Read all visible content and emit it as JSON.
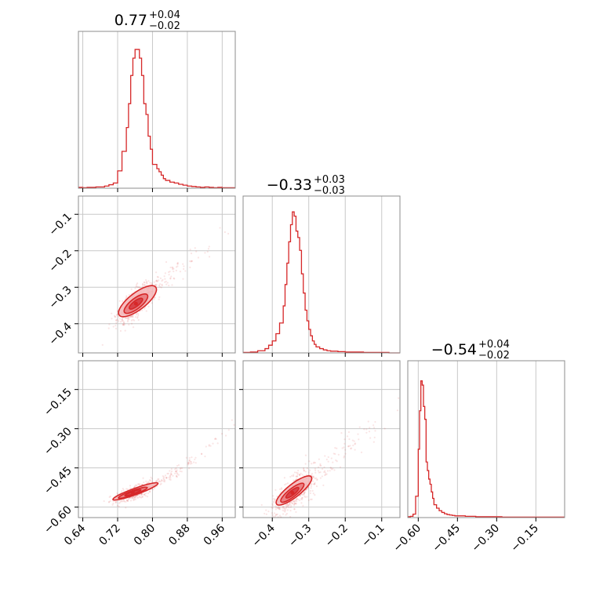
{
  "colors": {
    "series": "#d62728",
    "fill_light": "#f4b6b8",
    "fill_mid": "#e8777a",
    "fill_dark": "#d33a3f",
    "grid": "#c8c8c8",
    "frame": "#8c8c8c"
  },
  "chart_data": {
    "type": "corner",
    "grid": true,
    "parameters": [
      {
        "title_main": "0.77",
        "title_sup": "+0.04",
        "title_sub": "−0.02",
        "range": [
          0.63,
          0.99
        ],
        "ticks": [
          0.64,
          0.72,
          0.8,
          0.88,
          0.96
        ],
        "tick_labels": [
          "0.64",
          "0.72",
          "0.80",
          "0.88",
          "0.96"
        ],
        "histogram": {
          "bin_edges": [
            0.63,
            0.64,
            0.65,
            0.66,
            0.67,
            0.68,
            0.69,
            0.7,
            0.71,
            0.72,
            0.73,
            0.74,
            0.745,
            0.75,
            0.755,
            0.76,
            0.765,
            0.77,
            0.775,
            0.78,
            0.785,
            0.79,
            0.795,
            0.8,
            0.81,
            0.815,
            0.82,
            0.825,
            0.83,
            0.84,
            0.85,
            0.86,
            0.87,
            0.88,
            0.89,
            0.9,
            0.91,
            0.92,
            0.93,
            0.94,
            0.95,
            0.96,
            0.97,
            0.98,
            0.99
          ],
          "counts": [
            2,
            1,
            2,
            2,
            3,
            3,
            5,
            8,
            12,
            40,
            85,
            140,
            195,
            260,
            300,
            320,
            320,
            300,
            260,
            195,
            170,
            120,
            90,
            55,
            45,
            38,
            30,
            22,
            18,
            14,
            12,
            9,
            7,
            5,
            4,
            3,
            2,
            3,
            2,
            1,
            2,
            1,
            1,
            1
          ],
          "ymax": 340
        }
      },
      {
        "title_main": "−0.33",
        "title_sup": "+0.03",
        "title_sub": "−0.03",
        "range": [
          -0.48,
          -0.05
        ],
        "ticks": [
          -0.4,
          -0.3,
          -0.2,
          -0.1
        ],
        "tick_labels": [
          "−0.4",
          "−0.3",
          "−0.2",
          "−0.1"
        ],
        "histogram": {
          "bin_edges": [
            -0.48,
            -0.46,
            -0.44,
            -0.42,
            -0.41,
            -0.4,
            -0.39,
            -0.38,
            -0.37,
            -0.365,
            -0.36,
            -0.355,
            -0.35,
            -0.345,
            -0.34,
            -0.335,
            -0.33,
            -0.325,
            -0.32,
            -0.315,
            -0.31,
            -0.305,
            -0.3,
            -0.295,
            -0.29,
            -0.285,
            -0.28,
            -0.27,
            -0.26,
            -0.25,
            -0.24,
            -0.22,
            -0.2,
            -0.18,
            -0.15,
            -0.12,
            -0.08,
            -0.05
          ],
          "counts": [
            1,
            2,
            5,
            10,
            18,
            28,
            45,
            70,
            110,
            160,
            210,
            260,
            300,
            330,
            320,
            285,
            270,
            240,
            185,
            140,
            100,
            75,
            55,
            40,
            28,
            20,
            14,
            10,
            7,
            5,
            4,
            3,
            2,
            2,
            1,
            1,
            0
          ],
          "ymax": 345
        }
      },
      {
        "title_main": "−0.54",
        "title_sup": "+0.04",
        "title_sub": "−0.02",
        "range": [
          -0.64,
          -0.04
        ],
        "ticks": [
          -0.6,
          -0.45,
          -0.3,
          -0.15
        ],
        "tick_labels": [
          "−0.60",
          "−0.45",
          "−0.30",
          "−0.15"
        ],
        "histogram": {
          "bin_edges": [
            -0.64,
            -0.63,
            -0.62,
            -0.61,
            -0.6,
            -0.595,
            -0.59,
            -0.585,
            -0.58,
            -0.575,
            -0.57,
            -0.565,
            -0.56,
            -0.555,
            -0.55,
            -0.545,
            -0.54,
            -0.53,
            -0.52,
            -0.51,
            -0.5,
            -0.49,
            -0.48,
            -0.47,
            -0.46,
            -0.44,
            -0.42,
            -0.4,
            -0.38,
            -0.35,
            -0.32,
            -0.28,
            -0.24,
            -0.18,
            -0.12,
            -0.06,
            -0.04
          ],
          "counts": [
            2,
            3,
            8,
            50,
            160,
            250,
            320,
            310,
            260,
            230,
            130,
            110,
            90,
            78,
            60,
            45,
            30,
            22,
            16,
            12,
            9,
            7,
            6,
            5,
            4,
            4,
            3,
            3,
            2,
            2,
            2,
            1,
            1,
            1,
            1,
            1
          ],
          "ymax": 345
        }
      }
    ],
    "scatter_pairs": [
      {
        "x_param": 0,
        "y_param": 1,
        "relation": {
          "slope": 0.92,
          "intercept": -1.045,
          "curvature": 0.0
        },
        "density_peak": [
          0.762,
          -0.345
        ],
        "spread_x": 0.022,
        "spread_y_residual": 0.018,
        "contour_levels": [
          {
            "level": "outer",
            "sx": 0.048,
            "sy": 0.042
          },
          {
            "level": "mid",
            "sx": 0.03,
            "sy": 0.026
          },
          {
            "level": "inner",
            "sx": 0.017,
            "sy": 0.014
          }
        ]
      },
      {
        "x_param": 0,
        "y_param": 2,
        "relation": {
          "slope": 0.6,
          "intercept": -1.0,
          "curvature": 2.4
        },
        "density_peak": [
          0.755,
          -0.545
        ],
        "spread_x": 0.022,
        "spread_y_residual": 0.012,
        "contour_levels": [
          {
            "level": "outer",
            "sx": 0.05,
            "sy": 0.022
          },
          {
            "level": "mid",
            "sx": 0.032,
            "sy": 0.015
          },
          {
            "level": "inner",
            "sx": 0.018,
            "sy": 0.008
          }
        ]
      },
      {
        "x_param": 1,
        "y_param": 2,
        "relation": {
          "slope": 1.1,
          "intercept": -0.17,
          "curvature": 0.0
        },
        "density_peak": [
          -0.345,
          -0.545
        ],
        "spread_x": 0.03,
        "spread_y_residual": 0.03,
        "contour_levels": [
          {
            "level": "outer",
            "sx": 0.055,
            "sy": 0.045
          },
          {
            "level": "mid",
            "sx": 0.036,
            "sy": 0.028
          },
          {
            "level": "inner",
            "sx": 0.02,
            "sy": 0.016
          }
        ]
      }
    ]
  }
}
